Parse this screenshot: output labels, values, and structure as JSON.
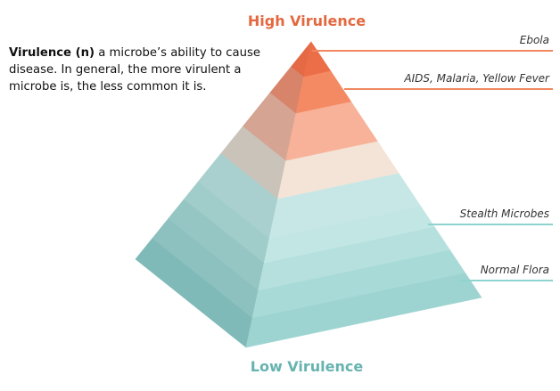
{
  "title_top": "High Virulence",
  "title_bottom": "Low Virulence",
  "definition": {
    "term": "Virulence (n)",
    "text": " a microbe’s ability to cause disease. In general, the more virulent a microbe is, the less common it is."
  },
  "labels": {
    "ebola": "Ebola",
    "aids": "AIDS, Malaria, Yellow Fever",
    "stealth": "Stealth Microbes",
    "normal": "Normal Flora"
  },
  "colors": {
    "high": "#e4683f",
    "low": "#66b3b0",
    "line_orange": "#f0875f",
    "line_teal": "#8fd3d0"
  }
}
